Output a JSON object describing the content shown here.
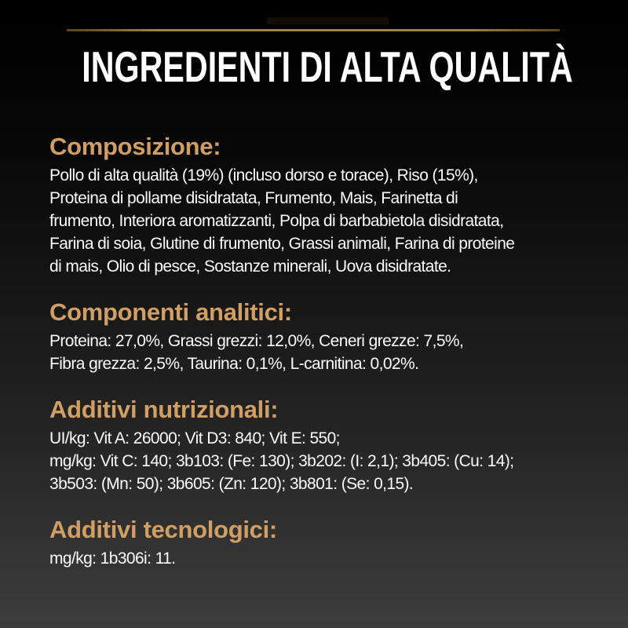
{
  "page": {
    "title": "INGREDIENTI DI ALTA QUALITÀ"
  },
  "colors": {
    "background_top": "#000000",
    "background_bottom": "#3d3d3d",
    "heading_gold": "#d19e63",
    "divider_gold": "#8b7340",
    "body_text": "#fafafa",
    "title_text": "#ffffff"
  },
  "sections": [
    {
      "heading": "Composizione:",
      "body": "Pollo di alta qualità (19%) (incluso dorso e torace), Riso (15%),\nProteina di pollame disidratata, Frumento, Mais, Farinetta di\nfrumento, Interiora aromatizzanti, Polpa di barbabietola disidratata,\nFarina di soia, Glutine di frumento, Grassi animali, Farina di proteine\ndi mais, Olio di pesce, Sostanze minerali, Uova disidratate."
    },
    {
      "heading": "Componenti analitici:",
      "body": "Proteina: 27,0%, Grassi grezzi: 12,0%, Ceneri grezze: 7,5%,\nFibra grezza: 2,5%, Taurina: 0,1%, L-carnitina: 0,02%."
    },
    {
      "heading": "Additivi nutrizionali:",
      "body": "UI/kg: Vit A: 26000; Vit D3: 840; Vit E: 550;\nmg/kg: Vit C: 140; 3b103: (Fe: 130); 3b202: (I: 2,1); 3b405: (Cu: 14);\n3b503: (Mn: 50); 3b605: (Zn: 120); 3b801: (Se: 0,15)."
    },
    {
      "heading": "Additivi tecnologici:",
      "body": "mg/kg: 1b306i: 11."
    }
  ]
}
